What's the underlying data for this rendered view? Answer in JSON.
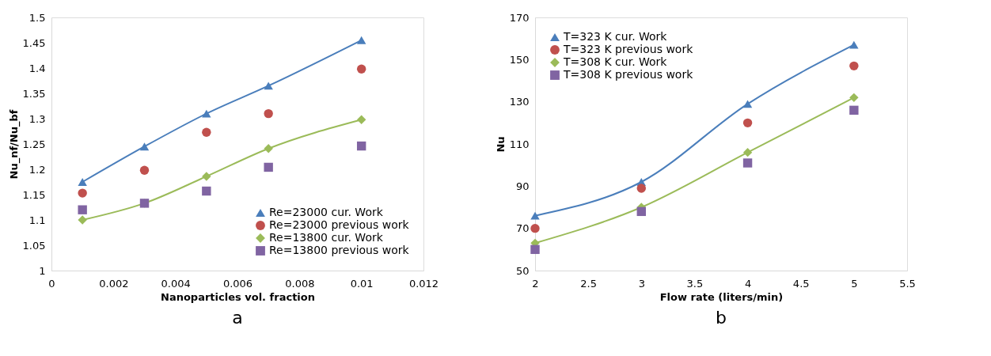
{
  "chart_data": [
    {
      "type": "line",
      "xlabel": "Nanoparticles vol. fraction",
      "ylabel": "Nu_nf/Nu_bf",
      "x": [
        0.001,
        0.003,
        0.005,
        0.007,
        0.01
      ],
      "xlim": [
        0,
        0.012
      ],
      "xticks": [
        0,
        0.002,
        0.004,
        0.006,
        0.008,
        0.01,
        0.012
      ],
      "ylim": [
        1,
        1.5
      ],
      "yticks": [
        1,
        1.05,
        1.1,
        1.15,
        1.2,
        1.25,
        1.3,
        1.35,
        1.4,
        1.45,
        1.5
      ],
      "grid": false,
      "legend": "bottom right",
      "annotations": [
        "a"
      ],
      "series": [
        {
          "name": "Re=23000  cur. Work",
          "type": "line",
          "marker": "triangle",
          "color": "#4a7ebb",
          "values": [
            1.175,
            1.245,
            1.31,
            1.365,
            1.455
          ]
        },
        {
          "name": "Re=23000 previous work",
          "type": "scatter",
          "marker": "circle",
          "color": "#c0504d",
          "values": [
            1.153,
            1.198,
            1.273,
            1.31,
            1.398
          ]
        },
        {
          "name": "Re=13800  cur. Work",
          "type": "line",
          "marker": "diamond",
          "color": "#9bbb59",
          "values": [
            1.1,
            1.133,
            1.186,
            1.241,
            1.298
          ]
        },
        {
          "name": "Re=13800 previous work",
          "type": "scatter",
          "marker": "square",
          "color": "#8064a2",
          "values": [
            1.12,
            1.133,
            1.157,
            1.204,
            1.246
          ]
        }
      ]
    },
    {
      "type": "line",
      "xlabel": "Flow rate (liters/min)",
      "ylabel": "Nu",
      "x": [
        2,
        3,
        4,
        5
      ],
      "xlim": [
        2,
        5.5
      ],
      "xticks": [
        2,
        2.5,
        3,
        3.5,
        4,
        4.5,
        5,
        5.5
      ],
      "ylim": [
        50,
        170
      ],
      "yticks": [
        50,
        70,
        90,
        110,
        130,
        150,
        170
      ],
      "grid": false,
      "legend": "top left",
      "annotations": [
        "b"
      ],
      "series": [
        {
          "name": "T=323 K cur. Work",
          "type": "line",
          "marker": "triangle",
          "color": "#4a7ebb",
          "values": [
            76,
            92,
            129,
            157
          ]
        },
        {
          "name": "T=323 K previous work",
          "type": "scatter",
          "marker": "circle",
          "color": "#c0504d",
          "values": [
            70,
            89,
            120,
            147
          ]
        },
        {
          "name": "T=308 K cur. Work",
          "type": "line",
          "marker": "diamond",
          "color": "#9bbb59",
          "values": [
            63,
            80,
            106,
            132
          ]
        },
        {
          "name": "T=308 K previous work",
          "type": "scatter",
          "marker": "square",
          "color": "#8064a2",
          "values": [
            60,
            78,
            101,
            126
          ]
        }
      ]
    }
  ]
}
